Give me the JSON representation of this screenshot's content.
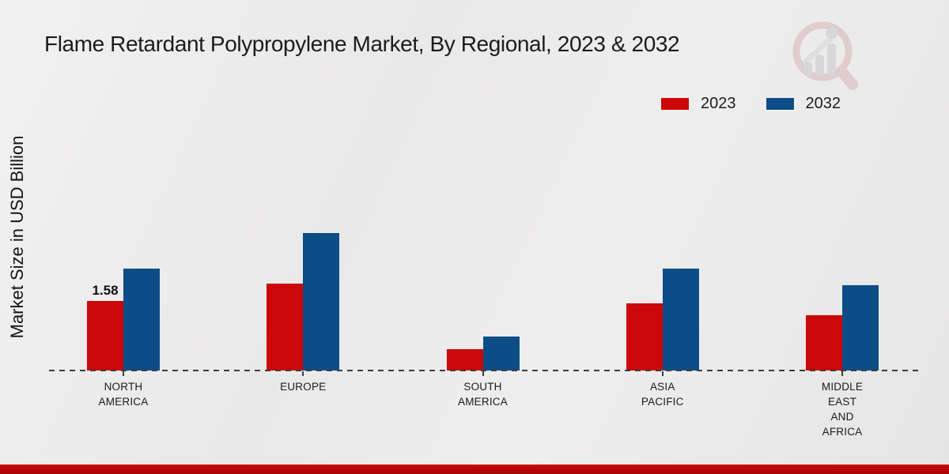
{
  "title": "Flame Retardant Polypropylene Market, By Regional, 2023 & 2032",
  "ylabel": "Market Size in USD Billion",
  "legend": [
    {
      "label": "2023",
      "color": "#cb0707"
    },
    {
      "label": "2032",
      "color": "#0d4d87"
    }
  ],
  "colors": {
    "series_2023": "#cb0707",
    "series_2032": "#0d4d87",
    "baseline": "#3d3d3d",
    "bottom_band": "#b50606"
  },
  "chart_data": {
    "type": "bar",
    "categories": [
      "NORTH\nAMERICA",
      "EUROPE",
      "SOUTH\nAMERICA",
      "ASIA\nPACIFIC",
      "MIDDLE\nEAST\nAND\nAFRICA"
    ],
    "series": [
      {
        "name": "2023",
        "color": "#cb0707",
        "values": [
          1.58,
          1.97,
          0.48,
          1.52,
          1.26
        ]
      },
      {
        "name": "2032",
        "color": "#0d4d87",
        "values": [
          2.32,
          3.12,
          0.77,
          2.32,
          1.94
        ]
      }
    ],
    "bar_labels": [
      {
        "series_index": 0,
        "category_index": 0,
        "text": "1.58"
      }
    ],
    "title": "Flame Retardant Polypropylene Market, By Regional, 2023 & 2032",
    "xlabel": "",
    "ylabel": "Market Size in USD Billion",
    "ylim": [
      0,
      3.5
    ],
    "grid": false,
    "y_axis_ticks_visible": false,
    "baseline_style": "dashed",
    "legend_position": "top-right"
  }
}
